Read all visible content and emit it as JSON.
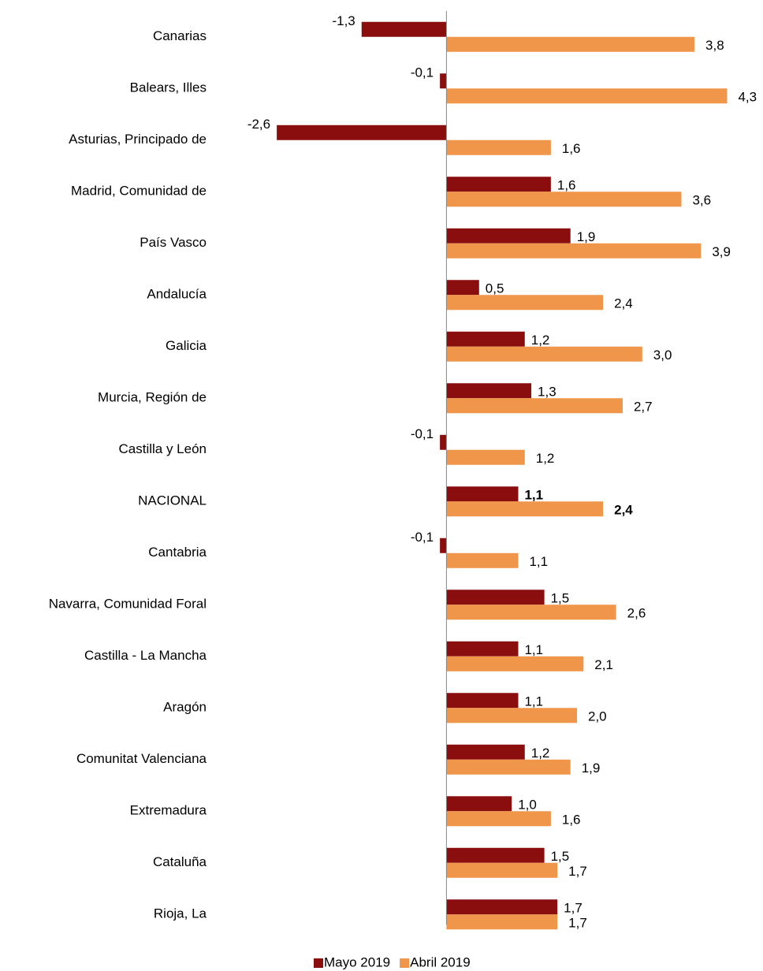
{
  "chart_data": {
    "type": "hbar",
    "categories": [
      "Canarias",
      "Balears, Illes",
      "Asturias, Principado de",
      "Madrid, Comunidad de",
      "País Vasco",
      "Andalucía",
      "Galicia",
      "Murcia, Región de",
      "Castilla y León",
      "NACIONAL",
      "Cantabria",
      "Navarra, Comunidad Foral",
      "Castilla - La Mancha",
      "Aragón",
      "Comunitat Valenciana",
      "Extremadura",
      "Cataluña",
      "Rioja, La"
    ],
    "series": [
      {
        "name": "Mayo 2019",
        "color": "#8b0e0e",
        "values": [
          -1.3,
          -0.1,
          -2.6,
          1.6,
          1.9,
          0.5,
          1.2,
          1.3,
          -0.1,
          1.1,
          -0.1,
          1.5,
          1.1,
          1.1,
          1.2,
          1.0,
          1.5,
          1.7
        ],
        "value_labels": [
          "-1,3",
          "-0,1",
          "-2,6",
          "1,6",
          "1,9",
          "0,5",
          "1,2",
          "1,3",
          "-0,1",
          "1,1",
          "-0,1",
          "1,5",
          "1,1",
          "1,1",
          "1,2",
          "1,0",
          "1,5",
          "1,7"
        ]
      },
      {
        "name": "Abril 2019",
        "color": "#f0964a",
        "values": [
          3.8,
          4.3,
          1.6,
          3.6,
          3.9,
          2.4,
          3.0,
          2.7,
          1.2,
          2.4,
          1.1,
          2.6,
          2.1,
          2.0,
          1.9,
          1.6,
          1.7,
          1.7
        ],
        "value_labels": [
          "3,8",
          "4,3",
          "1,6",
          "3,6",
          "3,9",
          "2,4",
          "3,0",
          "2,7",
          "1,2",
          "2,4",
          "1,1",
          "2,6",
          "2,1",
          "2,0",
          "1,9",
          "1,6",
          "1,7",
          "1,7"
        ]
      }
    ],
    "xlim": [
      -3,
      4.5
    ],
    "highlight_category": "NACIONAL",
    "legend": "bottom"
  }
}
